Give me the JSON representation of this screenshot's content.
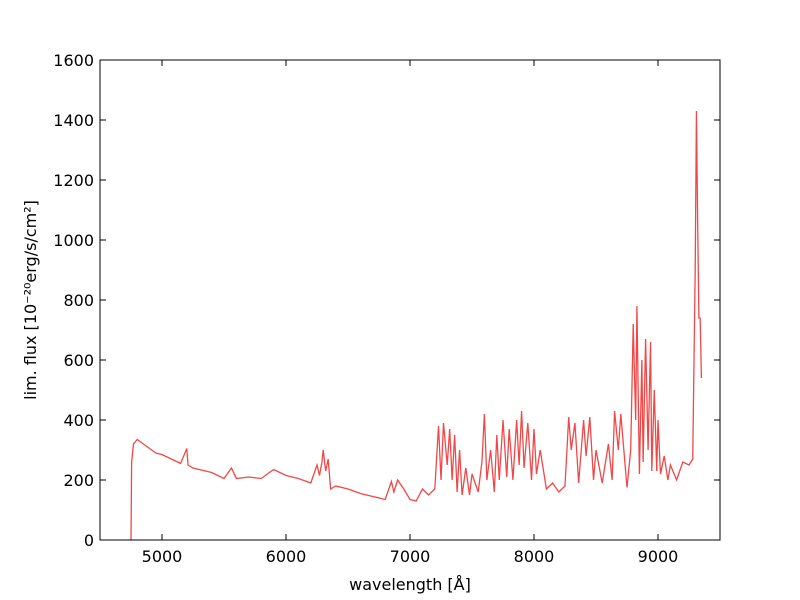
{
  "chart_data": {
    "type": "line",
    "xlabel": "wavelength [Å]",
    "ylabel": "lim. flux [10⁻²⁰erg/s/cm²]",
    "xlim": [
      4500,
      9500
    ],
    "xticks": [
      5000,
      6000,
      7000,
      8000,
      9000
    ],
    "ylim": [
      0,
      1600
    ],
    "yticks": [
      0,
      200,
      400,
      600,
      800,
      1000,
      1200,
      1400,
      1600
    ],
    "grid": false,
    "series": [
      {
        "color": "#f04848",
        "x": [
          4750,
          4755,
          4770,
          4800,
          4850,
          4900,
          4950,
          5000,
          5050,
          5100,
          5150,
          5200,
          5210,
          5250,
          5300,
          5400,
          5500,
          5560,
          5600,
          5700,
          5800,
          5900,
          5950,
          6000,
          6100,
          6200,
          6250,
          6270,
          6290,
          6300,
          6320,
          6340,
          6360,
          6400,
          6500,
          6600,
          6700,
          6800,
          6850,
          6870,
          6900,
          6950,
          7000,
          7050,
          7100,
          7150,
          7200,
          7230,
          7250,
          7270,
          7300,
          7320,
          7340,
          7360,
          7380,
          7400,
          7420,
          7450,
          7480,
          7500,
          7550,
          7580,
          7600,
          7620,
          7650,
          7680,
          7700,
          7720,
          7750,
          7780,
          7800,
          7830,
          7860,
          7880,
          7900,
          7920,
          7950,
          7980,
          8000,
          8020,
          8050,
          8100,
          8150,
          8200,
          8250,
          8280,
          8300,
          8330,
          8360,
          8400,
          8420,
          8450,
          8480,
          8500,
          8550,
          8600,
          8630,
          8650,
          8680,
          8700,
          8750,
          8780,
          8800,
          8820,
          8830,
          8850,
          8870,
          8880,
          8900,
          8920,
          8940,
          8950,
          8970,
          8990,
          9000,
          9020,
          9050,
          9080,
          9100,
          9150,
          9200,
          9250,
          9280,
          9300,
          9310,
          9320,
          9330,
          9340,
          9350
        ],
        "values": [
          0,
          260,
          320,
          335,
          320,
          305,
          290,
          285,
          275,
          265,
          255,
          305,
          250,
          240,
          235,
          225,
          205,
          240,
          205,
          210,
          205,
          235,
          225,
          215,
          205,
          190,
          250,
          215,
          260,
          300,
          230,
          270,
          170,
          180,
          170,
          155,
          145,
          135,
          195,
          160,
          200,
          170,
          135,
          130,
          170,
          150,
          170,
          380,
          200,
          390,
          250,
          370,
          200,
          350,
          160,
          300,
          150,
          240,
          150,
          220,
          160,
          260,
          420,
          200,
          300,
          160,
          350,
          200,
          400,
          210,
          370,
          200,
          400,
          250,
          430,
          240,
          390,
          200,
          370,
          220,
          300,
          170,
          190,
          160,
          180,
          410,
          300,
          390,
          190,
          400,
          280,
          410,
          200,
          300,
          190,
          320,
          200,
          430,
          300,
          420,
          175,
          300,
          720,
          400,
          780,
          220,
          600,
          260,
          670,
          300,
          660,
          230,
          500,
          230,
          400,
          220,
          280,
          200,
          250,
          200,
          260,
          250,
          270,
          900,
          1430,
          1050,
          740,
          740,
          540
        ]
      }
    ]
  }
}
